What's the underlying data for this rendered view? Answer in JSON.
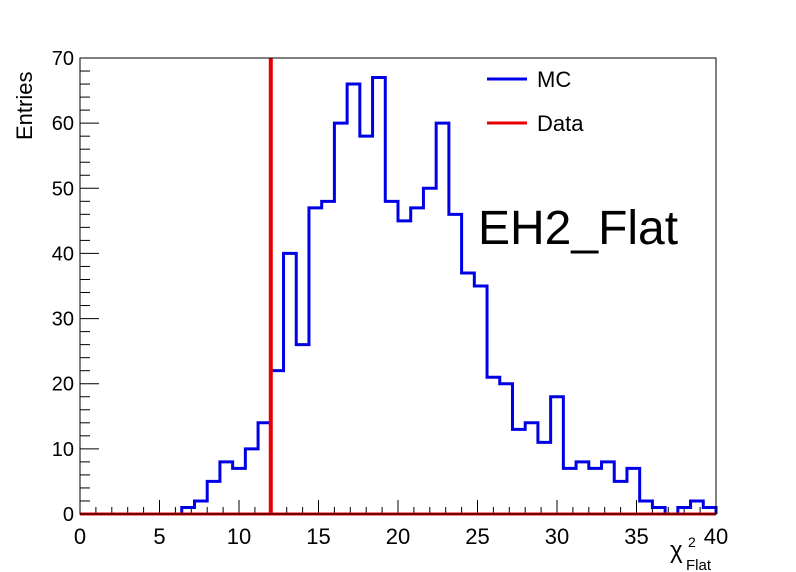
{
  "chart_data": {
    "type": "histogram",
    "title": "EH2_Flat",
    "xlabel": "χ",
    "xlabel_sup": "2",
    "xlabel_sub": "Flat",
    "ylabel": "Entries",
    "xlim": [
      0,
      40
    ],
    "ylim": [
      0,
      70
    ],
    "x_ticks": [
      0,
      5,
      10,
      15,
      20,
      25,
      30,
      35,
      40
    ],
    "y_ticks": [
      0,
      10,
      20,
      30,
      40,
      50,
      60,
      70
    ],
    "grid": false,
    "legend_position": "top-right",
    "bin_width": 0.8,
    "series": [
      {
        "name": "MC",
        "color": "#0000e6",
        "bin_edges": [
          0,
          0.8,
          1.6,
          2.4,
          3.2,
          4.0,
          4.8,
          5.6,
          6.4,
          7.2,
          8.0,
          8.8,
          9.6,
          10.4,
          11.2,
          12.0,
          12.8,
          13.6,
          14.4,
          15.2,
          16.0,
          16.8,
          17.6,
          18.4,
          19.2,
          20.0,
          20.8,
          21.6,
          22.4,
          23.2,
          24.0,
          24.8,
          25.6,
          26.4,
          27.2,
          28.0,
          28.8,
          29.6,
          30.4,
          31.2,
          32.0,
          32.8,
          33.6,
          34.4,
          35.2,
          36.0,
          36.8,
          37.6,
          38.4,
          39.2,
          40.0
        ],
        "counts": [
          0,
          0,
          0,
          0,
          0,
          0,
          0,
          0,
          1,
          2,
          5,
          8,
          7,
          10,
          14,
          22,
          40,
          26,
          47,
          48,
          60,
          66,
          58,
          67,
          48,
          45,
          47,
          50,
          60,
          46,
          37,
          35,
          21,
          20,
          13,
          14,
          11,
          18,
          7,
          8,
          7,
          8,
          5,
          7,
          2,
          1,
          0,
          1,
          2,
          1
        ]
      },
      {
        "name": "Data",
        "color": "#e60000",
        "x": 12.0
      }
    ]
  }
}
